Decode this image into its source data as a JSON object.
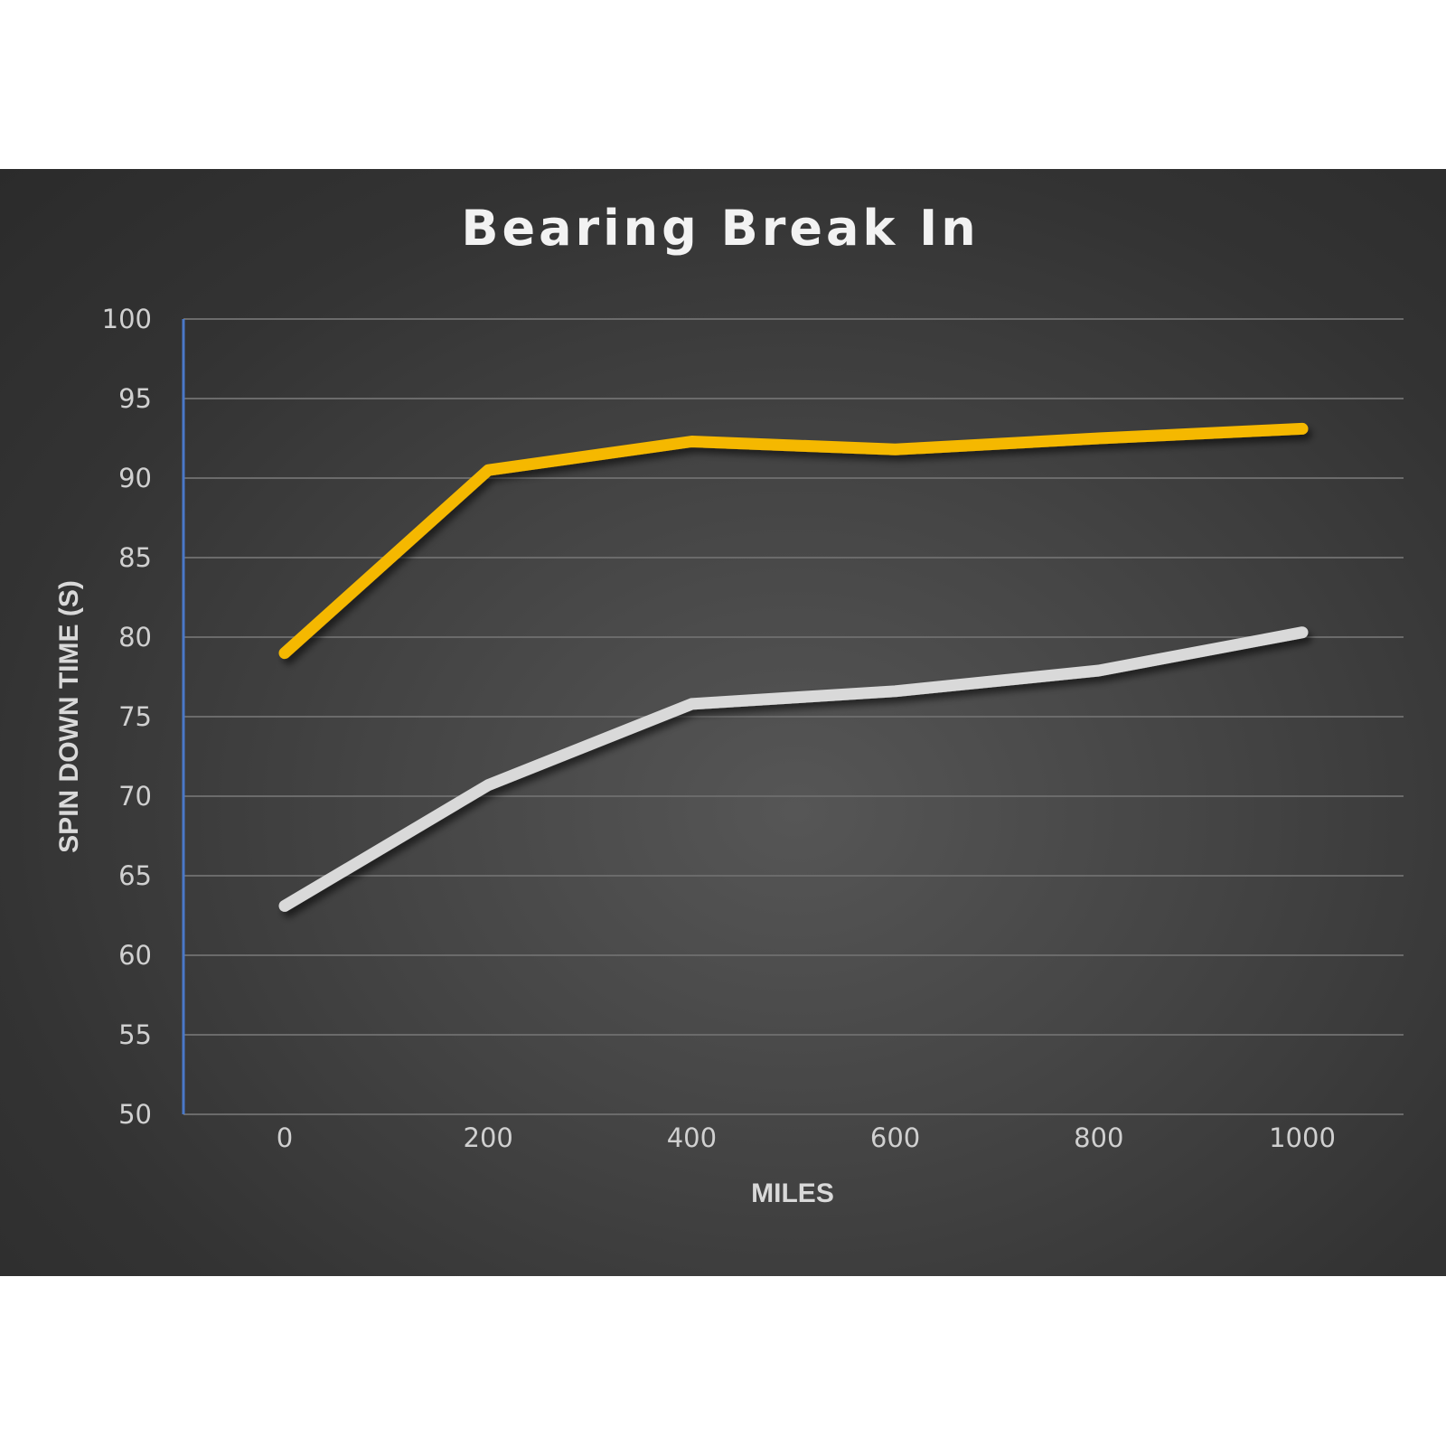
{
  "chart_data": {
    "type": "line",
    "title": "Bearing Break In",
    "xlabel": "MILES",
    "ylabel": "SPIN DOWN TIME (S)",
    "x": [
      0,
      200,
      400,
      600,
      800,
      1000
    ],
    "xticks": [
      "0",
      "200",
      "400",
      "600",
      "800",
      "1000"
    ],
    "ylim": [
      50,
      100
    ],
    "yticks": [
      "50",
      "55",
      "60",
      "65",
      "70",
      "75",
      "80",
      "85",
      "90",
      "95",
      "100"
    ],
    "grid": true,
    "legend": "none",
    "series": [
      {
        "values": [
          79,
          90.5,
          92.3,
          91.8,
          92.5,
          93.1
        ],
        "color": "#f5b800"
      },
      {
        "values": [
          63.1,
          70.7,
          75.8,
          76.6,
          77.9,
          80.3
        ],
        "color": "#d9d9d9"
      }
    ]
  }
}
